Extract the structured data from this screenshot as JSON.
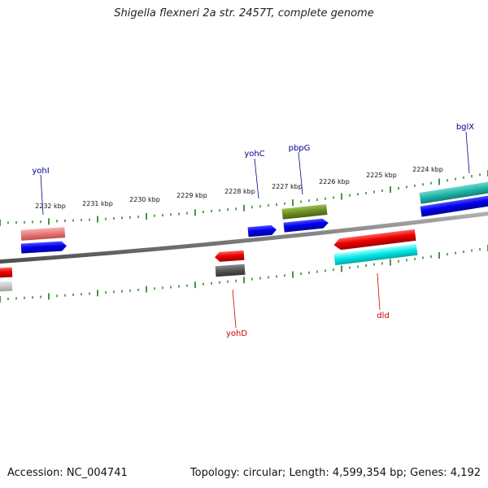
{
  "title": "Shigella flexneri 2a str. 2457T, complete genome",
  "footer": {
    "accession": "Accession: NC_004741",
    "summary": "Topology: circular; Length: 4,599,354 bp; Genes: 4,192"
  },
  "ruler": {
    "labels": [
      "2232 kbp",
      "2231 kbp",
      "2230 kbp",
      "2229 kbp",
      "2228 kbp",
      "2227 kbp",
      "2226 kbp",
      "2225 kbp",
      "2224 kbp"
    ]
  },
  "genes": [
    {
      "name": "yohI",
      "color": "#00008b"
    },
    {
      "name": "yohC",
      "color": "#00008b"
    },
    {
      "name": "pbpG",
      "color": "#00008b"
    },
    {
      "name": "bglX",
      "color": "#00008b"
    },
    {
      "name": "yohD",
      "color": "#cc0000"
    },
    {
      "name": "dld",
      "color": "#cc0000"
    }
  ],
  "colors": {
    "backbone": "#808080",
    "tick": "#1a7a1a",
    "blue": "#0000ee",
    "red": "#ee0000",
    "salmon": "#e87878",
    "olive": "#6b8e23",
    "cyan": "#00e0e0",
    "teal": "#20b2aa",
    "dark_gray": "#555555",
    "light_gray": "#c8c8c8"
  }
}
